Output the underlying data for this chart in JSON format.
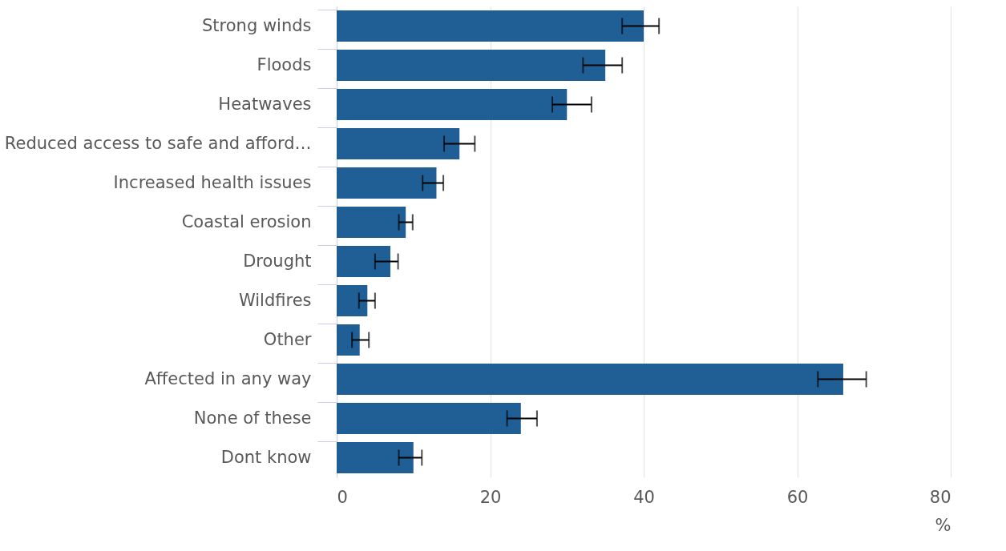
{
  "chart_data": {
    "type": "bar",
    "orientation": "horizontal",
    "xlabel": "%",
    "categories": [
      "Strong winds",
      "Floods",
      "Heatwaves",
      "Reduced access to safe and afford…",
      "Increased health issues",
      "Coastal erosion",
      "Drought",
      "Wildfires",
      "Other",
      "Affected in any way",
      "None of these",
      "Dont know"
    ],
    "values": [
      40,
      35,
      30,
      16,
      13,
      9,
      7,
      4,
      3,
      66,
      24,
      10
    ],
    "errors": [
      [
        37.2,
        42.0
      ],
      [
        32.1,
        37.2
      ],
      [
        28.1,
        33.2
      ],
      [
        14.0,
        18.0
      ],
      [
        11.2,
        13.9
      ],
      [
        8.1,
        9.9
      ],
      [
        5.0,
        8.0
      ],
      [
        2.9,
        5.0
      ],
      [
        2.0,
        4.2
      ],
      [
        62.7,
        69.0
      ],
      [
        22.2,
        26.1
      ],
      [
        8.1,
        11.1
      ]
    ],
    "color": "#1f5f96",
    "xlim": [
      0,
      80
    ],
    "xticks": [
      0,
      20,
      40,
      60,
      80
    ],
    "grid": "x"
  }
}
